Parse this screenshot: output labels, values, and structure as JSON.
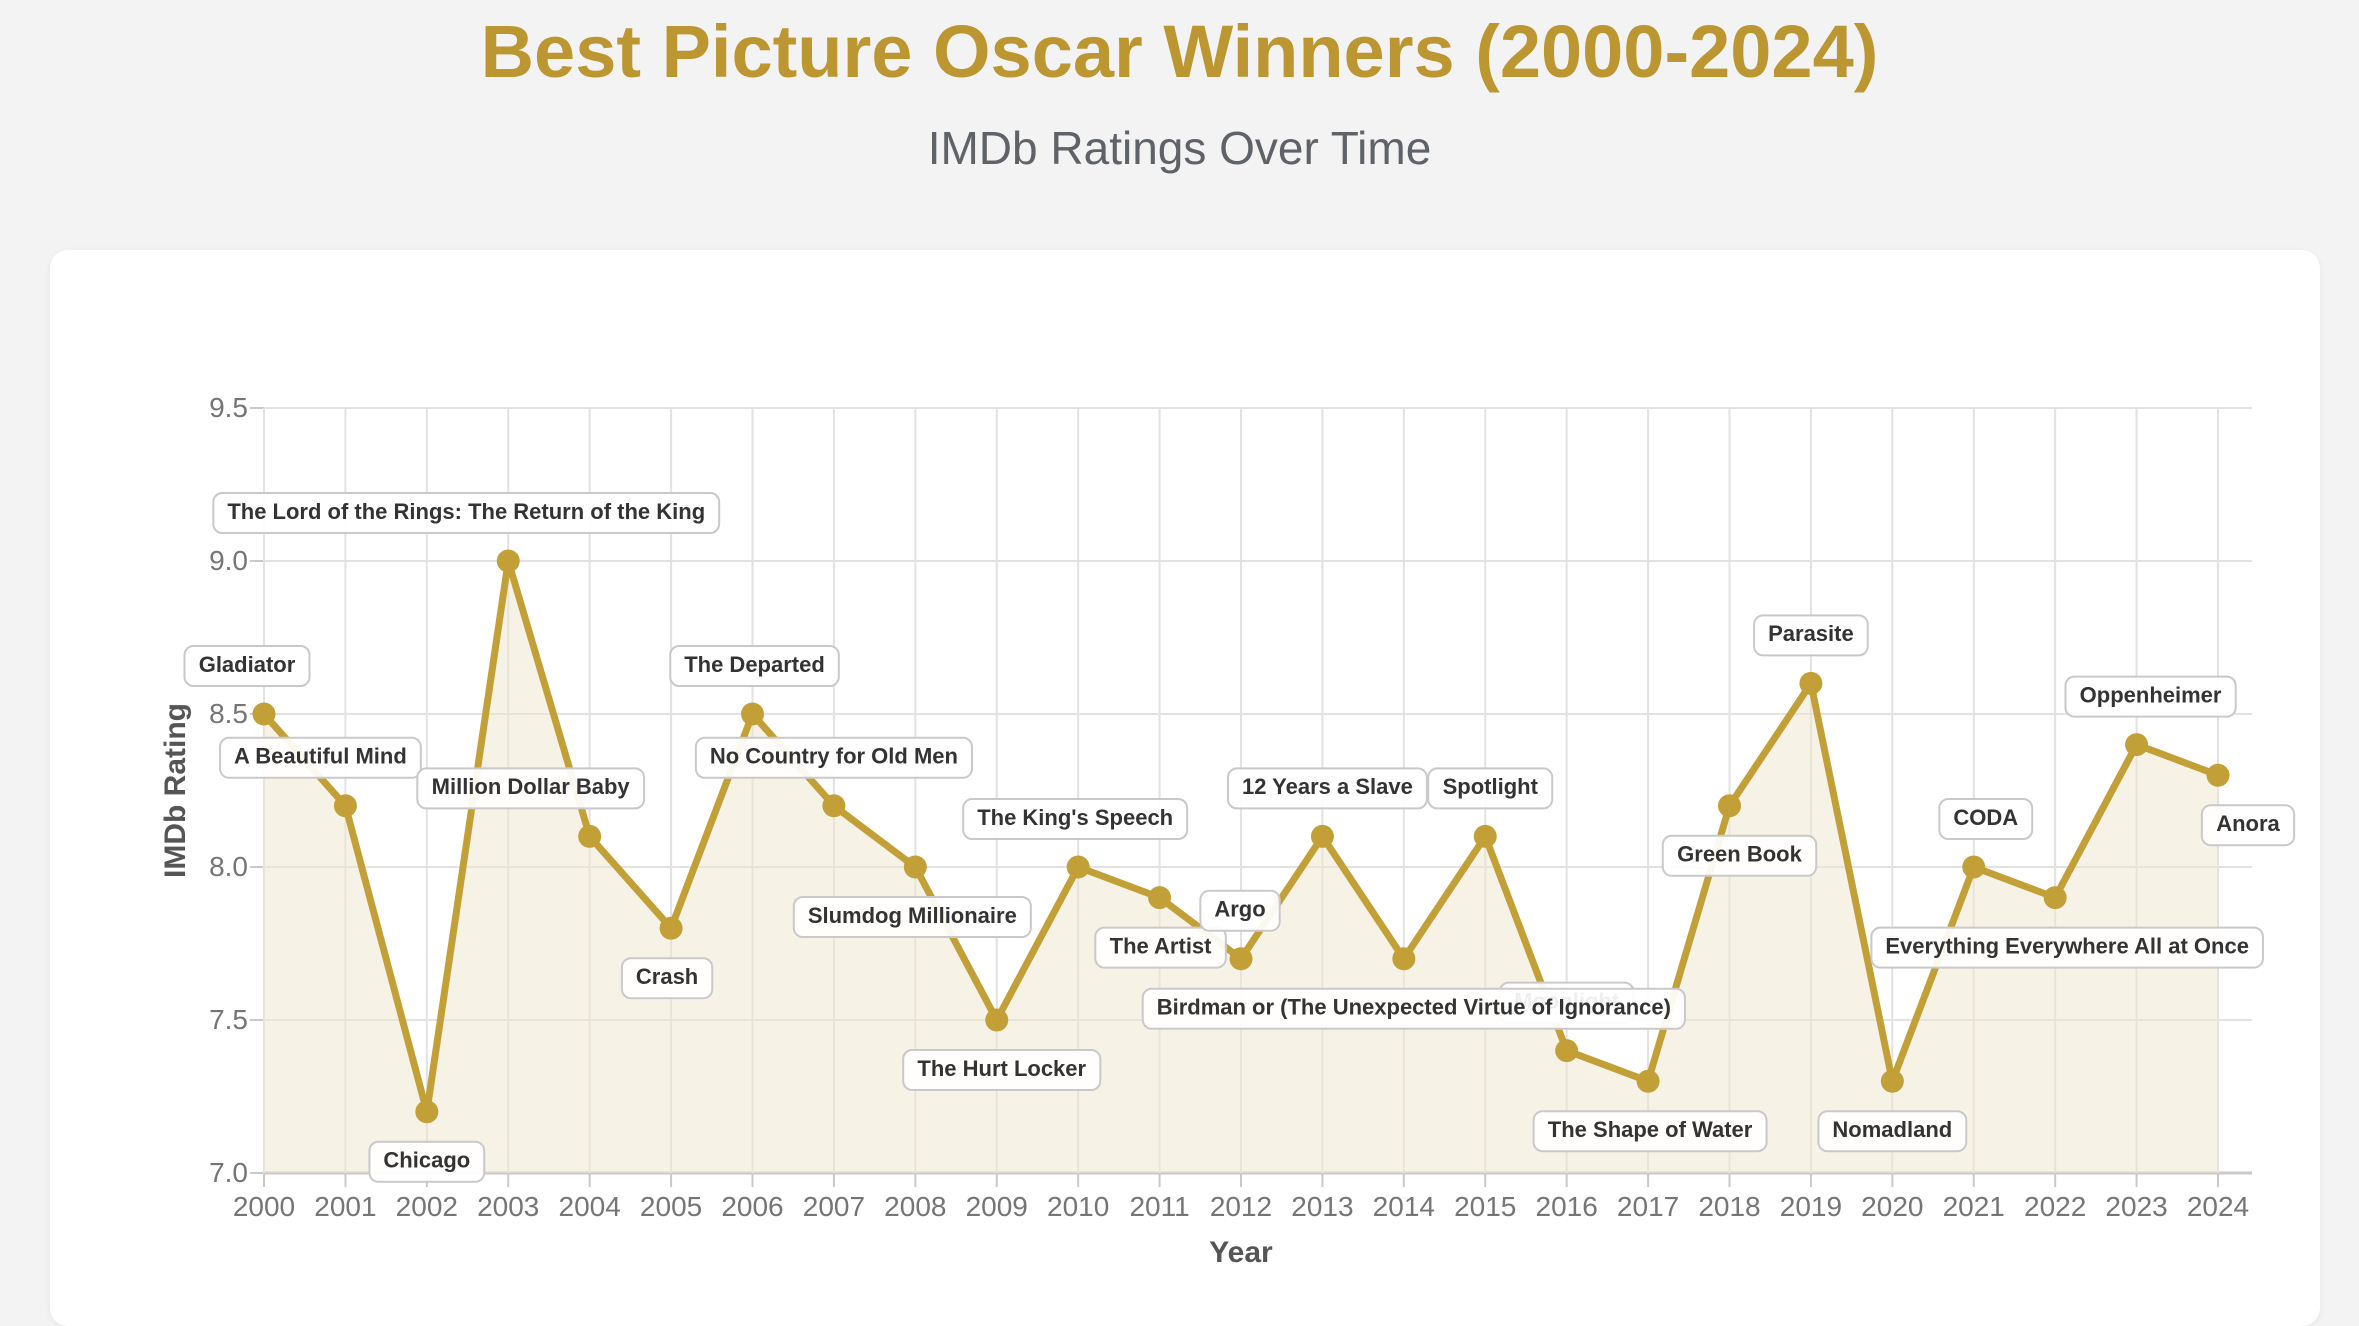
{
  "page": {
    "title": "Best Picture Oscar Winners (2000-2024)",
    "subtitle": "IMDb Ratings Over Time",
    "title_color": "#bb9631",
    "background_color": "#f3f3f4",
    "card_color": "#ffffff"
  },
  "chart_data": {
    "type": "line",
    "title": "Best Picture Oscar Winners (2000-2024)",
    "subtitle": "IMDb Ratings Over Time",
    "xlabel": "Year",
    "ylabel": "IMDb Rating",
    "xlim": [
      2000,
      2024
    ],
    "ylim": [
      7.0,
      9.5
    ],
    "y_ticks": [
      7.0,
      7.5,
      8.0,
      8.5,
      9.0,
      9.5
    ],
    "x_ticks": [
      2000,
      2001,
      2002,
      2003,
      2004,
      2005,
      2006,
      2007,
      2008,
      2009,
      2010,
      2011,
      2012,
      2013,
      2014,
      2015,
      2016,
      2017,
      2018,
      2019,
      2020,
      2021,
      2022,
      2023,
      2024
    ],
    "grid": true,
    "legend": "none",
    "series": [
      {
        "name": "IMDb Rating",
        "x": [
          2000,
          2001,
          2002,
          2003,
          2004,
          2005,
          2006,
          2007,
          2008,
          2009,
          2010,
          2011,
          2012,
          2013,
          2014,
          2015,
          2016,
          2017,
          2018,
          2019,
          2020,
          2021,
          2022,
          2023,
          2024
        ],
        "values": [
          8.5,
          8.2,
          7.2,
          9.0,
          8.1,
          7.8,
          8.5,
          8.2,
          8.0,
          7.5,
          8.0,
          7.9,
          7.7,
          8.1,
          7.7,
          8.1,
          7.4,
          7.3,
          8.2,
          8.6,
          7.3,
          8.0,
          7.9,
          8.4,
          8.3
        ]
      }
    ],
    "points": [
      {
        "year": 2000,
        "film": "Gladiator",
        "rating": 8.5,
        "label": "above",
        "dx": -17
      },
      {
        "year": 2001,
        "film": "A Beautiful Mind",
        "rating": 8.2,
        "label": "above",
        "dx": -25
      },
      {
        "year": 2002,
        "film": "Chicago",
        "rating": 7.2,
        "label": "below",
        "dx": 0
      },
      {
        "year": 2003,
        "film": "The Lord of the Rings: The Return of the King",
        "rating": 9.0,
        "label": "above",
        "dx": -42
      },
      {
        "year": 2004,
        "film": "Million Dollar Baby",
        "rating": 8.1,
        "label": "above",
        "dx": -59
      },
      {
        "year": 2005,
        "film": "Crash",
        "rating": 7.8,
        "label": "below",
        "dx": -4
      },
      {
        "year": 2006,
        "film": "The Departed",
        "rating": 8.5,
        "label": "above",
        "dx": 2
      },
      {
        "year": 2007,
        "film": "No Country for Old Men",
        "rating": 8.2,
        "label": "above",
        "dx": 0
      },
      {
        "year": 2008,
        "film": "Slumdog Millionaire",
        "rating": 8.0,
        "label": "below",
        "dx": -3
      },
      {
        "year": 2009,
        "film": "The Hurt Locker",
        "rating": 7.5,
        "label": "below",
        "dx": 5
      },
      {
        "year": 2010,
        "film": "The King's Speech",
        "rating": 8.0,
        "label": "above",
        "dx": -3
      },
      {
        "year": 2011,
        "film": "The Artist",
        "rating": 7.9,
        "label": "below",
        "dx": 1
      },
      {
        "year": 2012,
        "film": "Argo",
        "rating": 7.7,
        "label": "above",
        "dx": -1
      },
      {
        "year": 2013,
        "film": "12 Years a Slave",
        "rating": 8.1,
        "label": "above",
        "dx": 5
      },
      {
        "year": 2014,
        "film": "Birdman or (The Unexpected Virtue of Ignorance)",
        "rating": 7.7,
        "label": "below",
        "dx": 10,
        "zorder": "front"
      },
      {
        "year": 2015,
        "film": "Spotlight",
        "rating": 8.1,
        "label": "above",
        "dx": 5
      },
      {
        "year": 2016,
        "film": "Moonlight",
        "rating": 7.4,
        "label": "above",
        "dx": 0,
        "zorder": "behind"
      },
      {
        "year": 2017,
        "film": "The Shape of Water",
        "rating": 7.3,
        "label": "below",
        "dx": 2
      },
      {
        "year": 2018,
        "film": "Green Book",
        "rating": 8.2,
        "label": "below",
        "dx": 10,
        "dy_extra": 6
      },
      {
        "year": 2019,
        "film": "Parasite",
        "rating": 8.6,
        "label": "above",
        "dx": 0,
        "dy_extra": 6
      },
      {
        "year": 2020,
        "film": "Nomadland",
        "rating": 7.3,
        "label": "below",
        "dx": 0
      },
      {
        "year": 2021,
        "film": "CODA",
        "rating": 8.0,
        "label": "above",
        "dx": 12,
        "dy_extra": 6
      },
      {
        "year": 2022,
        "film": "Everything Everywhere All at Once",
        "rating": 7.9,
        "label": "below",
        "dx": 12
      },
      {
        "year": 2023,
        "film": "Oppenheimer",
        "rating": 8.4,
        "label": "above",
        "dx": 14,
        "dy_extra": 6
      },
      {
        "year": 2024,
        "film": "Anora",
        "rating": 8.3,
        "label": "below",
        "dx": 30,
        "dy_extra": 6
      }
    ],
    "colors": {
      "line": "#c3a037",
      "point": "#c3a037",
      "area_fill": "#efe6cd",
      "grid": "#e2e2e2",
      "axis_line": "#c9c9c9",
      "tick_text": "#757575",
      "axis_title_text": "#555555",
      "label_text": "#333333",
      "label_border": "#c9c9c9",
      "label_background": "rgba(255,255,255,0.92)"
    }
  }
}
